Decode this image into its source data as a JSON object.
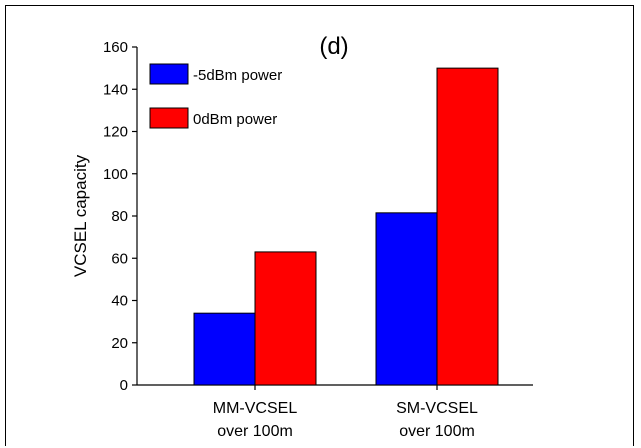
{
  "chart_data": {
    "type": "bar",
    "title": "(d)",
    "xlabel": "",
    "ylabel": "VCSEL capacity",
    "ylim": [
      0,
      160
    ],
    "yticks": [
      0,
      20,
      40,
      60,
      80,
      100,
      120,
      140,
      160
    ],
    "categories": [
      [
        "MM-VCSEL",
        "over 100m"
      ],
      [
        "SM-VCSEL",
        "over 100m"
      ]
    ],
    "series": [
      {
        "name": "-5dBm power",
        "color": "#0000ff",
        "values": [
          34,
          81.5
        ]
      },
      {
        "name": "0dBm power",
        "color": "#ff0000",
        "values": [
          63,
          150
        ]
      }
    ],
    "legend": "top-left",
    "grid": false
  }
}
